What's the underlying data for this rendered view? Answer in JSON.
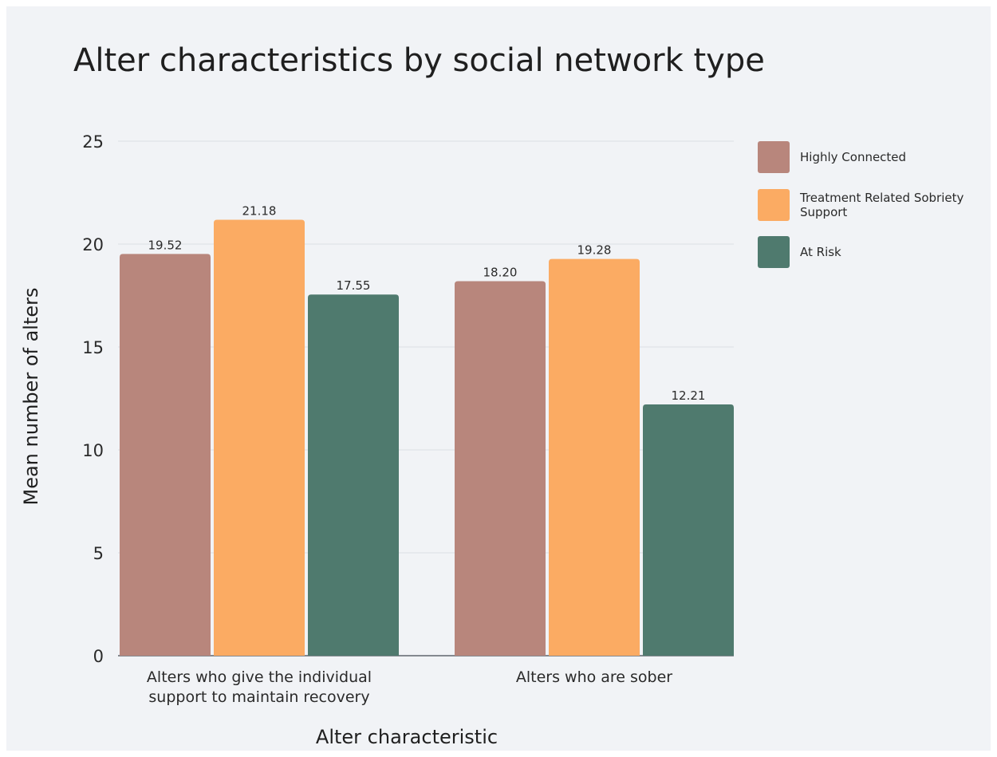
{
  "chart_data": {
    "type": "bar",
    "title": "Alter characteristics by social network type",
    "xlabel": "Alter characteristic",
    "ylabel": "Mean number of alters",
    "categories": [
      [
        "Alters who give the individual",
        "support to maintain recovery"
      ],
      [
        "Alters who are sober"
      ]
    ],
    "series": [
      {
        "name": "Highly Connected",
        "legend_lines": [
          "Highly Connected"
        ],
        "color": "#b8867c",
        "values": [
          19.52,
          18.2
        ],
        "labels": [
          "19.52",
          "18.20"
        ]
      },
      {
        "name": "Treatment Related Sobriety Support",
        "legend_lines": [
          "Treatment Related Sobriety",
          "Support"
        ],
        "color": "#fbab63",
        "values": [
          21.18,
          19.28
        ],
        "labels": [
          "21.18",
          "19.28"
        ]
      },
      {
        "name": "At Risk",
        "legend_lines": [
          "At Risk"
        ],
        "color": "#4f7a6e",
        "values": [
          17.55,
          12.21
        ],
        "labels": [
          "17.55",
          "12.21"
        ]
      }
    ],
    "ylim": [
      0,
      25
    ],
    "yticks": [
      0,
      5,
      10,
      15,
      20,
      25
    ],
    "grid": true,
    "legend_position": "top-right",
    "background": "#f1f3f6"
  }
}
